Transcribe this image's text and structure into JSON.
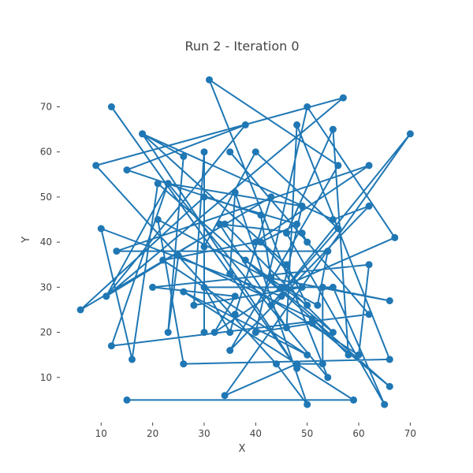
{
  "chart_data": {
    "type": "line",
    "title": "Run 2 - Iteration 0",
    "xlabel": "X",
    "ylabel": "Y",
    "xlim": [
      2,
      73
    ],
    "ylim": [
      0,
      79
    ],
    "xticks": [
      10,
      20,
      30,
      40,
      50,
      60,
      70
    ],
    "yticks": [
      10,
      20,
      30,
      40,
      50,
      60,
      70
    ],
    "grid": false,
    "series": [
      {
        "color": "#1f77b4",
        "points": [
          [
            15,
            5
          ],
          [
            59,
            5
          ],
          [
            26,
            29
          ],
          [
            50,
            15
          ],
          [
            22,
            36
          ],
          [
            40,
            40
          ],
          [
            62,
            57
          ],
          [
            13,
            38
          ],
          [
            54,
            38
          ],
          [
            52,
            26
          ],
          [
            21,
            45
          ],
          [
            26,
            13
          ],
          [
            66,
            14
          ],
          [
            48,
            66
          ],
          [
            46,
            21
          ],
          [
            33,
            44
          ],
          [
            49,
            42
          ],
          [
            50,
            40
          ],
          [
            35,
            60
          ],
          [
            62,
            24
          ],
          [
            12,
            17
          ],
          [
            23,
            53
          ],
          [
            54,
            10
          ],
          [
            31,
            76
          ],
          [
            56,
            57
          ],
          [
            35,
            16
          ],
          [
            62,
            48
          ],
          [
            55,
            45
          ],
          [
            18,
            64
          ],
          [
            46,
            35
          ],
          [
            50,
            26
          ],
          [
            38,
            36
          ],
          [
            55,
            20
          ],
          [
            34,
            44
          ],
          [
            11,
            28
          ],
          [
            23,
            53
          ],
          [
            49,
            48
          ],
          [
            45,
            28
          ],
          [
            10,
            43
          ],
          [
            16,
            14
          ],
          [
            21,
            53
          ],
          [
            66,
            8
          ],
          [
            51,
            22
          ],
          [
            40,
            20
          ],
          [
            50,
            70
          ],
          [
            67,
            41
          ],
          [
            45,
            30
          ],
          [
            32,
            20
          ],
          [
            36,
            28
          ],
          [
            20,
            30
          ],
          [
            62,
            35
          ],
          [
            60,
            15
          ],
          [
            35,
            33
          ],
          [
            36,
            51
          ],
          [
            50,
            4
          ],
          [
            44,
            13
          ],
          [
            9,
            57
          ],
          [
            57,
            72
          ],
          [
            11,
            28
          ],
          [
            38,
            66
          ],
          [
            15,
            56
          ],
          [
            41,
            46
          ],
          [
            43,
            32
          ],
          [
            66,
            27
          ],
          [
            53,
            30
          ],
          [
            53,
            13
          ],
          [
            48,
            13
          ],
          [
            34,
            6
          ],
          [
            70,
            64
          ],
          [
            43,
            26
          ],
          [
            56,
            43
          ],
          [
            40,
            60
          ],
          [
            30,
            39
          ],
          [
            30,
            20
          ],
          [
            30,
            60
          ],
          [
            28,
            26
          ],
          [
            49,
            30
          ],
          [
            41,
            40
          ],
          [
            48,
            44
          ],
          [
            30,
            50
          ],
          [
            6,
            25
          ],
          [
            43,
            50
          ],
          [
            36,
            24
          ],
          [
            35,
            20
          ],
          [
            30,
            30
          ],
          [
            55,
            30
          ],
          [
            65,
            4
          ],
          [
            46,
            42
          ],
          [
            55,
            65
          ],
          [
            58,
            15
          ],
          [
            51,
            23
          ],
          [
            25,
            37
          ],
          [
            23,
            20
          ],
          [
            26,
            59
          ],
          [
            18,
            64
          ],
          [
            48,
            12
          ],
          [
            12,
            70
          ]
        ]
      }
    ]
  }
}
